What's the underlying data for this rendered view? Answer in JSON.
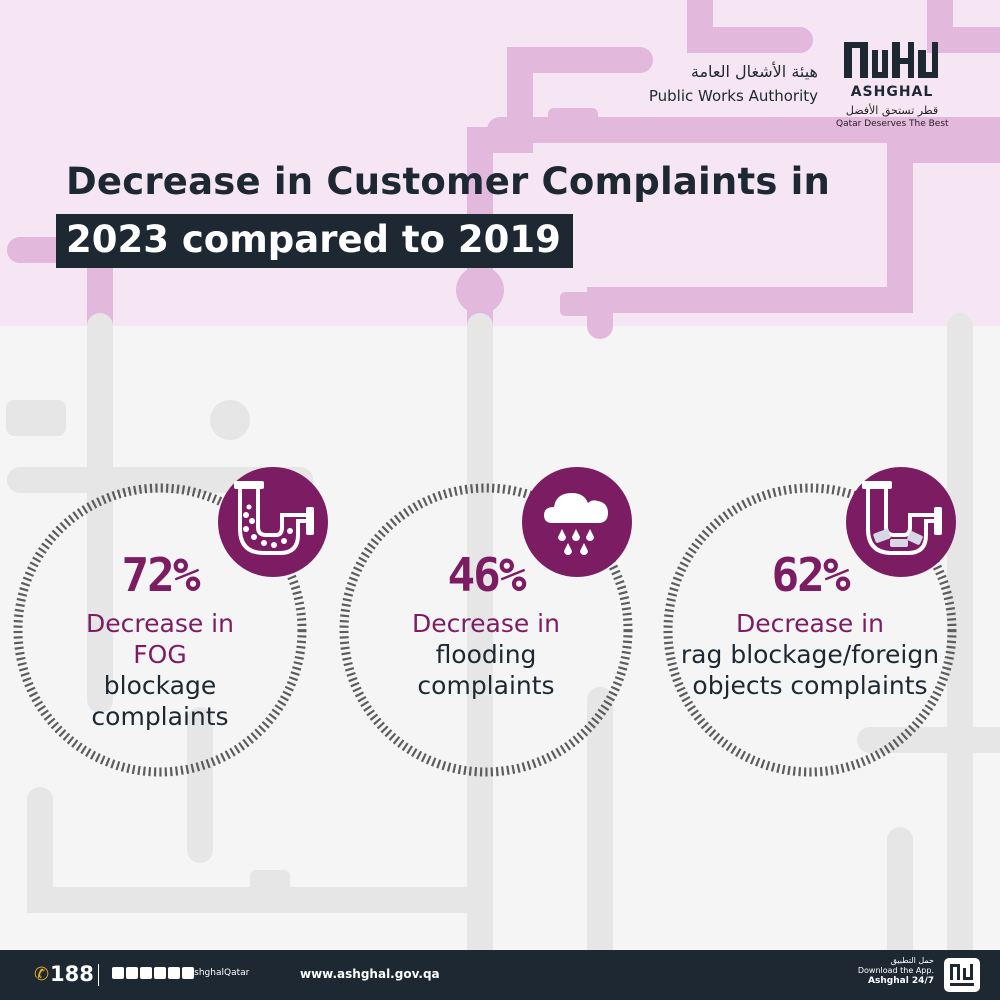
{
  "brand": {
    "logo_wordmark": "ASHGHAL",
    "arabic_tagline": "قطر تستحق الأفضل",
    "english_tagline": "Qatar Deserves The Best",
    "authority_arabic": "هيئة الأشغال العامة",
    "authority_english": "Public Works Authority"
  },
  "title": {
    "line1": "Decrease in Customer Complaints in",
    "line2": "2023 compared to 2019"
  },
  "stats": [
    {
      "value": "72%",
      "highlight": "Decrease in\nFOG",
      "rest": "blockage\ncomplaints",
      "icon": "fog-pipe-icon"
    },
    {
      "value": "46%",
      "highlight": "Decrease in",
      "rest": "flooding\ncomplaints",
      "icon": "rain-cloud-icon"
    },
    {
      "value": "62%",
      "highlight": "Decrease in",
      "rest": "rag blockage/foreign\nobjects complaints",
      "icon": "rag-pipe-icon"
    }
  ],
  "footer": {
    "hotline": "188",
    "social_handle": "AshghalQatar",
    "website": "www.ashghal.gov.qa",
    "app_arabic": "حمل التطبيق",
    "app_download": "Download the App.",
    "app_name": "Ashghal 24/7"
  },
  "colors": {
    "accent": "#7c1d64",
    "dark": "#1d2832",
    "top_background": "#f6e6f3",
    "pipes_top": "#e2b8dc",
    "pipes_bottom": "#e6e6e6"
  }
}
